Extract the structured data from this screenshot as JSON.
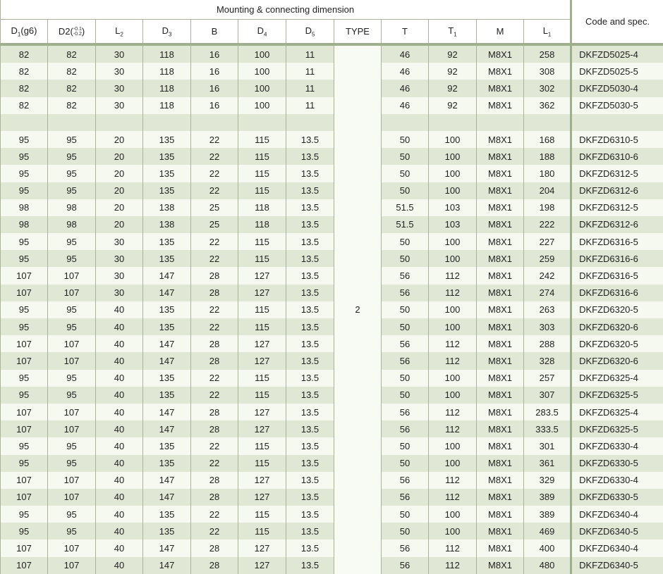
{
  "header": {
    "group": "Mounting & connecting dimension",
    "code": "Code and spec.",
    "cols": [
      [
        "D",
        "1",
        "(g6)"
      ],
      [
        "D2",
        "",
        ""
      ],
      [
        "L",
        "2",
        ""
      ],
      [
        "D",
        "3",
        ""
      ],
      [
        "B",
        "",
        ""
      ],
      [
        "D",
        "4",
        ""
      ],
      [
        "D",
        "5",
        ""
      ],
      [
        "TYPE",
        "",
        ""
      ],
      [
        "T",
        "",
        ""
      ],
      [
        "T",
        "1",
        ""
      ],
      [
        "M",
        "",
        ""
      ],
      [
        "L",
        "1",
        ""
      ]
    ],
    "d2_tol_upper": "-0.1",
    "d2_tol_lower": "-0.2"
  },
  "type_value": "2",
  "rows": [
    [
      "82",
      "82",
      "30",
      "118",
      "16",
      "100",
      "11",
      "46",
      "92",
      "M8X1",
      "258",
      "DKFZD5025-4"
    ],
    [
      "82",
      "82",
      "30",
      "118",
      "16",
      "100",
      "11",
      "46",
      "92",
      "M8X1",
      "308",
      "DKFZD5025-5"
    ],
    [
      "82",
      "82",
      "30",
      "118",
      "16",
      "100",
      "11",
      "46",
      "92",
      "M8X1",
      "302",
      "DKFZD5030-4"
    ],
    [
      "82",
      "82",
      "30",
      "118",
      "16",
      "100",
      "11",
      "46",
      "92",
      "M8X1",
      "362",
      "DKFZD5030-5"
    ],
    [
      "",
      "",
      "",
      "",
      "",
      "",
      "",
      "",
      "",
      "",
      "",
      ""
    ],
    [
      "95",
      "95",
      "20",
      "135",
      "22",
      "115",
      "13.5",
      "50",
      "100",
      "M8X1",
      "168",
      "DKFZD6310-5"
    ],
    [
      "95",
      "95",
      "20",
      "135",
      "22",
      "115",
      "13.5",
      "50",
      "100",
      "M8X1",
      "188",
      "DKFZD6310-6"
    ],
    [
      "95",
      "95",
      "20",
      "135",
      "22",
      "115",
      "13.5",
      "50",
      "100",
      "M8X1",
      "180",
      "DKFZD6312-5"
    ],
    [
      "95",
      "95",
      "20",
      "135",
      "22",
      "115",
      "13.5",
      "50",
      "100",
      "M8X1",
      "204",
      "DKFZD6312-6"
    ],
    [
      "98",
      "98",
      "20",
      "138",
      "25",
      "118",
      "13.5",
      "51.5",
      "103",
      "M8X1",
      "198",
      "DKFZD6312-5"
    ],
    [
      "98",
      "98",
      "20",
      "138",
      "25",
      "118",
      "13.5",
      "51.5",
      "103",
      "M8X1",
      "222",
      "DKFZD6312-6"
    ],
    [
      "95",
      "95",
      "30",
      "135",
      "22",
      "115",
      "13.5",
      "50",
      "100",
      "M8X1",
      "227",
      "DKFZD6316-5"
    ],
    [
      "95",
      "95",
      "30",
      "135",
      "22",
      "115",
      "13.5",
      "50",
      "100",
      "M8X1",
      "259",
      "DKFZD6316-6"
    ],
    [
      "107",
      "107",
      "30",
      "147",
      "28",
      "127",
      "13.5",
      "56",
      "112",
      "M8X1",
      "242",
      "DKFZD6316-5"
    ],
    [
      "107",
      "107",
      "30",
      "147",
      "28",
      "127",
      "13.5",
      "56",
      "112",
      "M8X1",
      "274",
      "DKFZD6316-6"
    ],
    [
      "95",
      "95",
      "40",
      "135",
      "22",
      "115",
      "13.5",
      "50",
      "100",
      "M8X1",
      "263",
      "DKFZD6320-5"
    ],
    [
      "95",
      "95",
      "40",
      "135",
      "22",
      "115",
      "13.5",
      "50",
      "100",
      "M8X1",
      "303",
      "DKFZD6320-6"
    ],
    [
      "107",
      "107",
      "40",
      "147",
      "28",
      "127",
      "13.5",
      "56",
      "112",
      "M8X1",
      "288",
      "DKFZD6320-5"
    ],
    [
      "107",
      "107",
      "40",
      "147",
      "28",
      "127",
      "13.5",
      "56",
      "112",
      "M8X1",
      "328",
      "DKFZD6320-6"
    ],
    [
      "95",
      "95",
      "40",
      "135",
      "22",
      "115",
      "13.5",
      "50",
      "100",
      "M8X1",
      "257",
      "DKFZD6325-4"
    ],
    [
      "95",
      "95",
      "40",
      "135",
      "22",
      "115",
      "13.5",
      "50",
      "100",
      "M8X1",
      "307",
      "DKFZD6325-5"
    ],
    [
      "107",
      "107",
      "40",
      "147",
      "28",
      "127",
      "13.5",
      "56",
      "112",
      "M8X1",
      "283.5",
      "DKFZD6325-4"
    ],
    [
      "107",
      "107",
      "40",
      "147",
      "28",
      "127",
      "13.5",
      "56",
      "112",
      "M8X1",
      "333.5",
      "DKFZD6325-5"
    ],
    [
      "95",
      "95",
      "40",
      "135",
      "22",
      "115",
      "13.5",
      "50",
      "100",
      "M8X1",
      "301",
      "DKFZD6330-4"
    ],
    [
      "95",
      "95",
      "40",
      "135",
      "22",
      "115",
      "13.5",
      "50",
      "100",
      "M8X1",
      "361",
      "DKFZD6330-5"
    ],
    [
      "107",
      "107",
      "40",
      "147",
      "28",
      "127",
      "13.5",
      "56",
      "112",
      "M8X1",
      "329",
      "DKFZD6330-4"
    ],
    [
      "107",
      "107",
      "40",
      "147",
      "28",
      "127",
      "13.5",
      "56",
      "112",
      "M8X1",
      "389",
      "DKFZD6330-5"
    ],
    [
      "95",
      "95",
      "40",
      "135",
      "22",
      "115",
      "13.5",
      "50",
      "100",
      "M8X1",
      "389",
      "DKFZD6340-4"
    ],
    [
      "95",
      "95",
      "40",
      "135",
      "22",
      "115",
      "13.5",
      "50",
      "100",
      "M8X1",
      "469",
      "DKFZD6340-5"
    ],
    [
      "107",
      "107",
      "40",
      "147",
      "28",
      "127",
      "13.5",
      "56",
      "112",
      "M8X1",
      "400",
      "DKFZD6340-4"
    ],
    [
      "107",
      "107",
      "40",
      "147",
      "28",
      "127",
      "13.5",
      "56",
      "112",
      "M8X1",
      "480",
      "DKFZD6340-5"
    ]
  ]
}
